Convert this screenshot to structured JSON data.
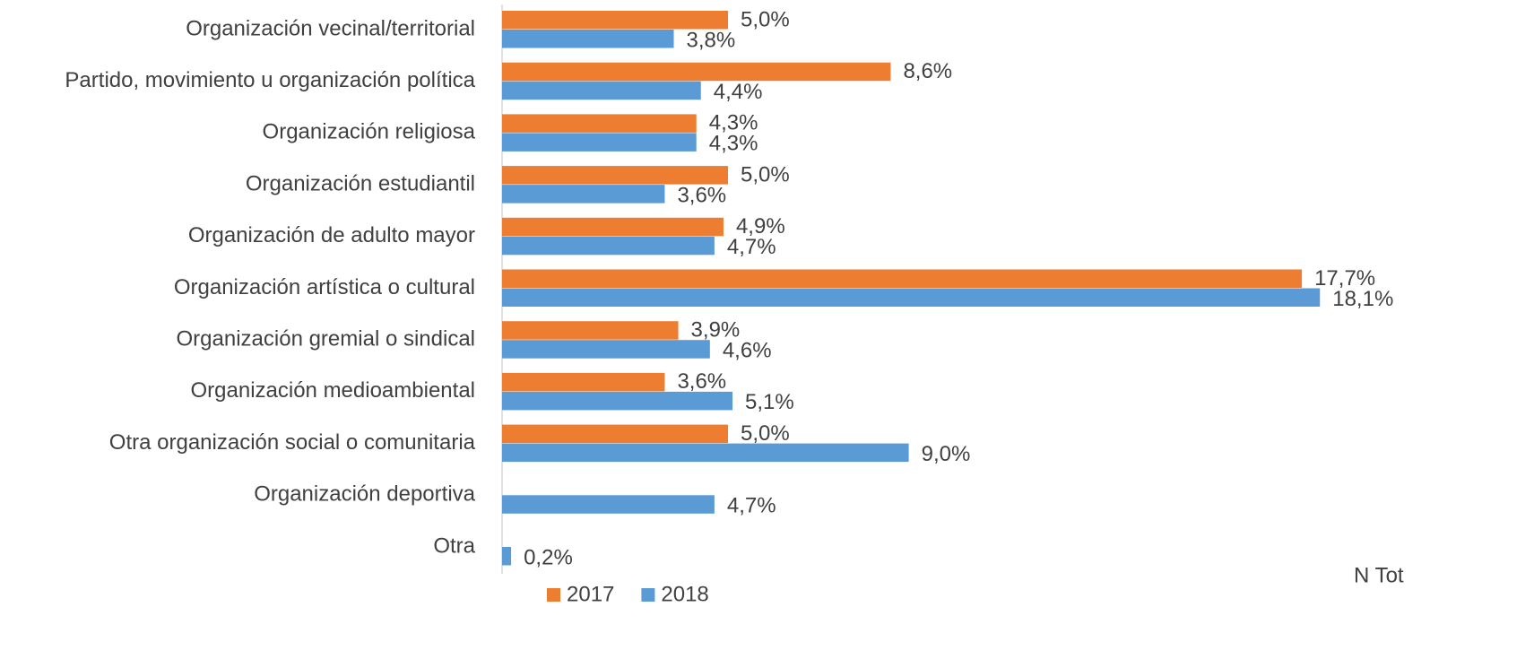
{
  "chart_data": {
    "type": "hbar",
    "categories": [
      "Organización vecinal/territorial",
      "Partido, movimiento u organización política",
      "Organización religiosa",
      "Organización estudiantil",
      "Organización de adulto mayor",
      "Organización artística o cultural",
      "Organización gremial o sindical",
      "Organización medioambiental",
      "Otra organización social o comunitaria",
      "Organización deportiva",
      "Otra"
    ],
    "series": [
      {
        "name": "2017",
        "color": "#ED7D31",
        "values": [
          5.0,
          8.6,
          4.3,
          5.0,
          4.9,
          17.7,
          3.9,
          3.6,
          5.0,
          null,
          null
        ],
        "value_labels": [
          "5,0%",
          "8,6%",
          "4,3%",
          "5,0%",
          "4,9%",
          "17,7%",
          "3,9%",
          "3,6%",
          "5,0%",
          null,
          null
        ]
      },
      {
        "name": "2018",
        "color": "#5B9BD5",
        "values": [
          3.8,
          4.4,
          4.3,
          3.6,
          4.7,
          18.1,
          4.6,
          5.1,
          9.0,
          4.7,
          0.2
        ],
        "value_labels": [
          "3,8%",
          "4,4%",
          "4,3%",
          "3,6%",
          "4,7%",
          "18,1%",
          "4,6%",
          "5,1%",
          "9,0%",
          "4,7%",
          "0,2%"
        ]
      }
    ],
    "xlim": [
      0,
      20
    ],
    "legend": "bottom",
    "annotation": "N Tot"
  }
}
